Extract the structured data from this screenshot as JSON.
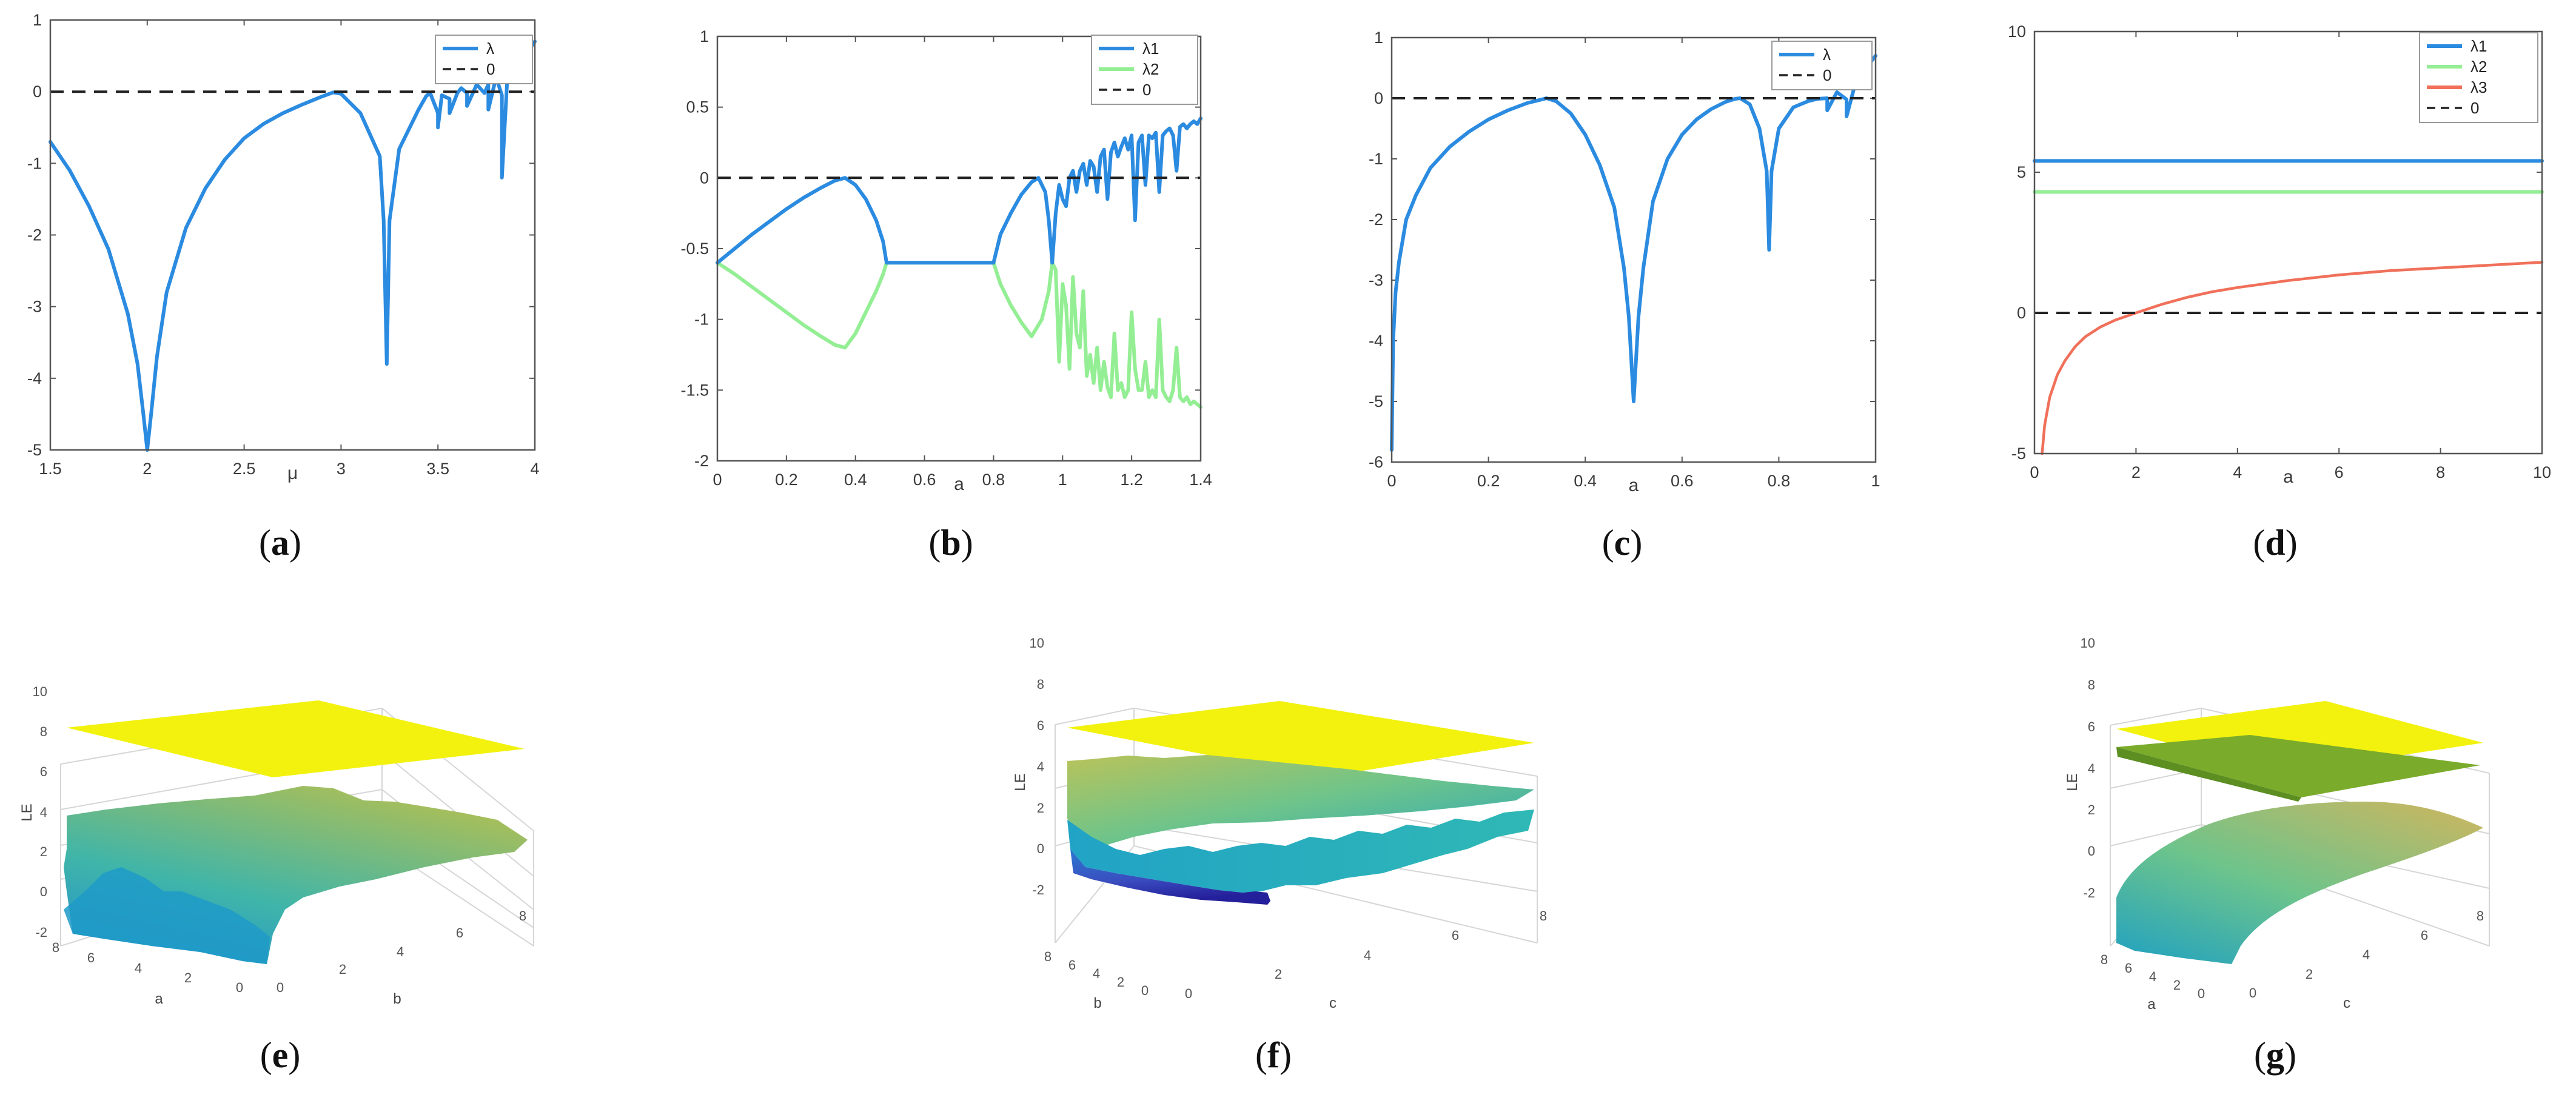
{
  "colors": {
    "blue": "#2b8be0",
    "green": "#94ee94",
    "red": "#f0705a",
    "zero": "#222222",
    "yellow": "#f2f20e",
    "axis": "#555555",
    "grid": "#e6e6e6"
  },
  "captions": [
    "a",
    "b",
    "c",
    "d",
    "e",
    "f",
    "g"
  ],
  "chart_data": [
    {
      "id": "a",
      "type": "line",
      "xlabel": "μ",
      "ylabel": "",
      "xlim": [
        1.5,
        4
      ],
      "ylim": [
        -5,
        1
      ],
      "xticks": [
        "1.5",
        "2",
        "2.5",
        "3",
        "3.5",
        "4"
      ],
      "yticks": [
        "-5",
        "-4",
        "-3",
        "-2",
        "-1",
        "0",
        "1"
      ],
      "legend": [
        "λ",
        "0"
      ],
      "series": [
        {
          "name": "λ",
          "color": "blue",
          "x": [
            1.5,
            1.6,
            1.7,
            1.8,
            1.9,
            1.95,
            1.98,
            2.0,
            2.02,
            2.05,
            2.1,
            2.2,
            2.3,
            2.4,
            2.5,
            2.6,
            2.7,
            2.8,
            2.9,
            2.96,
            3.0,
            3.1,
            3.2,
            3.22,
            3.236,
            3.25,
            3.3,
            3.4,
            3.44,
            3.46,
            3.5,
            3.5,
            3.52,
            3.56,
            3.56,
            3.6,
            3.62,
            3.65,
            3.65,
            3.7,
            3.74,
            3.76,
            3.76,
            3.8,
            3.83,
            3.83,
            3.86,
            3.9,
            3.92,
            3.96,
            4.0
          ],
          "y": [
            -0.7,
            -1.1,
            -1.6,
            -2.2,
            -3.1,
            -3.8,
            -4.5,
            -5.0,
            -4.5,
            -3.7,
            -2.8,
            -1.9,
            -1.35,
            -0.95,
            -0.65,
            -0.45,
            -0.3,
            -0.18,
            -0.07,
            -0.01,
            -0.03,
            -0.3,
            -0.9,
            -1.8,
            -3.8,
            -1.8,
            -0.8,
            -0.25,
            -0.06,
            -0.02,
            -0.3,
            -0.5,
            -0.05,
            -0.1,
            -0.3,
            -0.02,
            0.05,
            -0.02,
            -0.2,
            0.1,
            -0.02,
            0.1,
            -0.25,
            0.2,
            -0.05,
            -1.2,
            0.3,
            0.4,
            0.45,
            0.55,
            0.7
          ]
        },
        {
          "name": "0",
          "color": "zero",
          "dashed": true,
          "x": [
            1.5,
            4
          ],
          "y": [
            0,
            0
          ]
        }
      ]
    },
    {
      "id": "b",
      "type": "line",
      "xlabel": "a",
      "ylabel": "",
      "xlim": [
        0,
        1.4
      ],
      "ylim": [
        -2,
        1
      ],
      "xticks": [
        "0",
        "0.2",
        "0.4",
        "0.6",
        "0.8",
        "1",
        "1.2",
        "1.4"
      ],
      "yticks": [
        "-2",
        "-1.5",
        "-1",
        "-0.5",
        "0",
        "0.5",
        "1"
      ],
      "legend": [
        "λ1",
        "λ2",
        "0"
      ],
      "series": [
        {
          "name": "λ2 base",
          "color": "green",
          "x": [
            0.49,
            0.8
          ],
          "y": [
            -0.6,
            -0.6
          ]
        },
        {
          "name": "λ2",
          "color": "green",
          "x": [
            0,
            0.05,
            0.1,
            0.15,
            0.2,
            0.25,
            0.3,
            0.34,
            0.37,
            0.4,
            0.43,
            0.46,
            0.48,
            0.49
          ],
          "y": [
            -0.6,
            -0.68,
            -0.77,
            -0.86,
            -0.95,
            -1.04,
            -1.12,
            -1.18,
            -1.2,
            -1.1,
            -0.95,
            -0.8,
            -0.68,
            -0.6
          ]
        },
        {
          "name": "λ2 b",
          "color": "green",
          "x": [
            0.8,
            0.82,
            0.85,
            0.88,
            0.91,
            0.94,
            0.96,
            0.97
          ],
          "y": [
            -0.6,
            -0.75,
            -0.9,
            -1.02,
            -1.12,
            -1.0,
            -0.8,
            -0.6
          ]
        },
        {
          "name": "λ2 c",
          "color": "green",
          "x": [
            0.97,
            0.98,
            0.99,
            1.0,
            1.01,
            1.02,
            1.03,
            1.04,
            1.05,
            1.06,
            1.07,
            1.08,
            1.09,
            1.1,
            1.11,
            1.12,
            1.13,
            1.14,
            1.15,
            1.16,
            1.17,
            1.18,
            1.19,
            1.2,
            1.21,
            1.22,
            1.23,
            1.24,
            1.25,
            1.26,
            1.27,
            1.28,
            1.29,
            1.3,
            1.31,
            1.32,
            1.33,
            1.34,
            1.35,
            1.36,
            1.37,
            1.38,
            1.39,
            1.4
          ],
          "y": [
            -0.6,
            -0.65,
            -1.3,
            -0.75,
            -0.9,
            -1.35,
            -0.7,
            -1.1,
            -1.2,
            -0.8,
            -1.4,
            -1.25,
            -1.45,
            -1.2,
            -1.5,
            -1.3,
            -1.48,
            -1.55,
            -1.1,
            -1.5,
            -1.45,
            -1.55,
            -1.5,
            -0.95,
            -1.35,
            -1.5,
            -1.5,
            -1.3,
            -1.55,
            -1.5,
            -1.55,
            -1.0,
            -1.5,
            -1.55,
            -1.58,
            -1.5,
            -1.2,
            -1.55,
            -1.58,
            -1.55,
            -1.6,
            -1.58,
            -1.6,
            -1.62
          ]
        },
        {
          "name": "λ1 base",
          "color": "blue",
          "x": [
            0.49,
            0.8
          ],
          "y": [
            -0.6,
            -0.6
          ]
        },
        {
          "name": "λ1",
          "color": "blue",
          "x": [
            0,
            0.05,
            0.1,
            0.15,
            0.2,
            0.25,
            0.3,
            0.34,
            0.37,
            0.4,
            0.43,
            0.46,
            0.48,
            0.49
          ],
          "y": [
            -0.6,
            -0.5,
            -0.4,
            -0.31,
            -0.22,
            -0.14,
            -0.07,
            -0.02,
            0.0,
            -0.05,
            -0.15,
            -0.3,
            -0.45,
            -0.6
          ]
        },
        {
          "name": "λ1 b",
          "color": "blue",
          "x": [
            0.8,
            0.82,
            0.85,
            0.88,
            0.91,
            0.93,
            0.95,
            0.96,
            0.97
          ],
          "y": [
            -0.6,
            -0.4,
            -0.25,
            -0.12,
            -0.03,
            0.0,
            -0.1,
            -0.3,
            -0.6
          ]
        },
        {
          "name": "λ1 c",
          "color": "blue",
          "x": [
            0.97,
            0.98,
            0.99,
            1.0,
            1.01,
            1.02,
            1.03,
            1.04,
            1.05,
            1.06,
            1.07,
            1.08,
            1.09,
            1.1,
            1.11,
            1.12,
            1.13,
            1.14,
            1.15,
            1.16,
            1.17,
            1.18,
            1.19,
            1.2,
            1.21,
            1.22,
            1.23,
            1.24,
            1.25,
            1.26,
            1.27,
            1.28,
            1.29,
            1.3,
            1.31,
            1.32,
            1.33,
            1.34,
            1.35,
            1.36,
            1.37,
            1.38,
            1.39,
            1.4
          ],
          "y": [
            -0.6,
            -0.25,
            -0.05,
            -0.15,
            -0.2,
            0.0,
            0.05,
            -0.1,
            0.05,
            0.1,
            -0.05,
            0.12,
            0.08,
            -0.1,
            0.15,
            0.2,
            -0.15,
            0.18,
            0.25,
            0.15,
            0.22,
            0.28,
            0.2,
            0.3,
            -0.3,
            0.25,
            0.3,
            -0.05,
            0.3,
            0.28,
            0.32,
            -0.1,
            0.3,
            0.33,
            0.35,
            0.3,
            0.05,
            0.36,
            0.38,
            0.35,
            0.38,
            0.4,
            0.38,
            0.42
          ]
        },
        {
          "name": "0",
          "color": "zero",
          "dashed": true,
          "x": [
            0,
            1.4
          ],
          "y": [
            0,
            0
          ]
        }
      ]
    },
    {
      "id": "c",
      "type": "line",
      "xlabel": "a",
      "ylabel": "",
      "xlim": [
        0,
        1
      ],
      "ylim": [
        -6,
        1
      ],
      "xticks": [
        "0",
        "0.2",
        "0.4",
        "0.6",
        "0.8",
        "1"
      ],
      "yticks": [
        "-6",
        "-5",
        "-4",
        "-3",
        "-2",
        "-1",
        "0",
        "1"
      ],
      "legend": [
        "λ",
        "0"
      ],
      "series": [
        {
          "name": "λ",
          "color": "blue",
          "x": [
            0.0,
            0.003,
            0.008,
            0.015,
            0.03,
            0.05,
            0.08,
            0.12,
            0.16,
            0.2,
            0.24,
            0.28,
            0.31,
            0.32,
            0.34,
            0.37,
            0.4,
            0.43,
            0.46,
            0.48,
            0.49,
            0.5,
            0.51,
            0.52,
            0.54,
            0.57,
            0.6,
            0.63,
            0.66,
            0.69,
            0.71,
            0.72,
            0.74,
            0.76,
            0.775,
            0.78,
            0.785,
            0.8,
            0.83,
            0.86,
            0.88,
            0.9,
            0.9,
            0.92,
            0.94,
            0.94,
            0.96,
            0.98,
            1.0
          ],
          "y": [
            -5.8,
            -4.0,
            -3.2,
            -2.7,
            -2.0,
            -1.6,
            -1.15,
            -0.8,
            -0.55,
            -0.35,
            -0.2,
            -0.08,
            -0.02,
            0.0,
            -0.05,
            -0.25,
            -0.6,
            -1.1,
            -1.8,
            -2.8,
            -3.6,
            -5.0,
            -3.6,
            -2.8,
            -1.7,
            -1.0,
            -0.6,
            -0.35,
            -0.18,
            -0.06,
            -0.01,
            0.0,
            -0.1,
            -0.5,
            -1.2,
            -2.5,
            -1.2,
            -0.5,
            -0.15,
            -0.05,
            -0.01,
            0.0,
            -0.2,
            0.1,
            -0.02,
            -0.3,
            0.3,
            0.5,
            0.7
          ]
        },
        {
          "name": "0",
          "color": "zero",
          "dashed": true,
          "x": [
            0,
            1
          ],
          "y": [
            0,
            0
          ]
        }
      ]
    },
    {
      "id": "d",
      "type": "line",
      "xlabel": "a",
      "ylabel": "",
      "xlim": [
        0,
        10
      ],
      "ylim": [
        -5,
        10
      ],
      "xticks": [
        "0",
        "2",
        "4",
        "6",
        "8",
        "10"
      ],
      "yticks": [
        "-5",
        "0",
        "5",
        "10"
      ],
      "legend": [
        "λ1",
        "λ2",
        "λ3",
        "0"
      ],
      "series": [
        {
          "name": "λ1",
          "color": "blue",
          "x": [
            0,
            10
          ],
          "y": [
            5.4,
            5.4
          ]
        },
        {
          "name": "λ2",
          "color": "green",
          "x": [
            0,
            10
          ],
          "y": [
            4.3,
            4.3
          ]
        },
        {
          "name": "λ3",
          "color": "red",
          "x": [
            0.15,
            0.2,
            0.3,
            0.45,
            0.6,
            0.8,
            1.0,
            1.3,
            1.6,
            2.0,
            2.5,
            3.0,
            3.5,
            4.0,
            5.0,
            6.0,
            7.0,
            8.0,
            9.0,
            10.0
          ],
          "y": [
            -5.0,
            -4.0,
            -3.0,
            -2.2,
            -1.7,
            -1.2,
            -0.85,
            -0.5,
            -0.25,
            0.0,
            0.3,
            0.55,
            0.75,
            0.9,
            1.15,
            1.35,
            1.5,
            1.6,
            1.7,
            1.8
          ]
        },
        {
          "name": "0",
          "color": "zero",
          "dashed": true,
          "x": [
            0,
            10
          ],
          "y": [
            0,
            0
          ]
        }
      ]
    },
    {
      "id": "e",
      "type": "surface",
      "zlabel": "LE",
      "xlabel": "a",
      "ylabel": "b",
      "zticks": [
        "-2",
        "0",
        "2",
        "4",
        "6",
        "8",
        "10"
      ],
      "xticks": [
        "8",
        "6",
        "4",
        "2",
        "0"
      ],
      "yticks": [
        "0",
        "2",
        "4",
        "6",
        "8"
      ]
    },
    {
      "id": "f",
      "type": "surface",
      "zlabel": "LE",
      "xlabel": "b",
      "ylabel": "c",
      "zticks": [
        "-2",
        "0",
        "2",
        "4",
        "6",
        "8",
        "10"
      ],
      "xticks": [
        "8",
        "6",
        "4",
        "2",
        "0"
      ],
      "yticks": [
        "0",
        "2",
        "4",
        "6",
        "8"
      ]
    },
    {
      "id": "g",
      "type": "surface",
      "zlabel": "LE",
      "xlabel": "a",
      "ylabel": "c",
      "zticks": [
        "-2",
        "0",
        "2",
        "4",
        "6",
        "8",
        "10"
      ],
      "xticks": [
        "8",
        "6",
        "4",
        "2",
        "0"
      ],
      "yticks": [
        "0",
        "2",
        "4",
        "6",
        "8"
      ]
    }
  ]
}
